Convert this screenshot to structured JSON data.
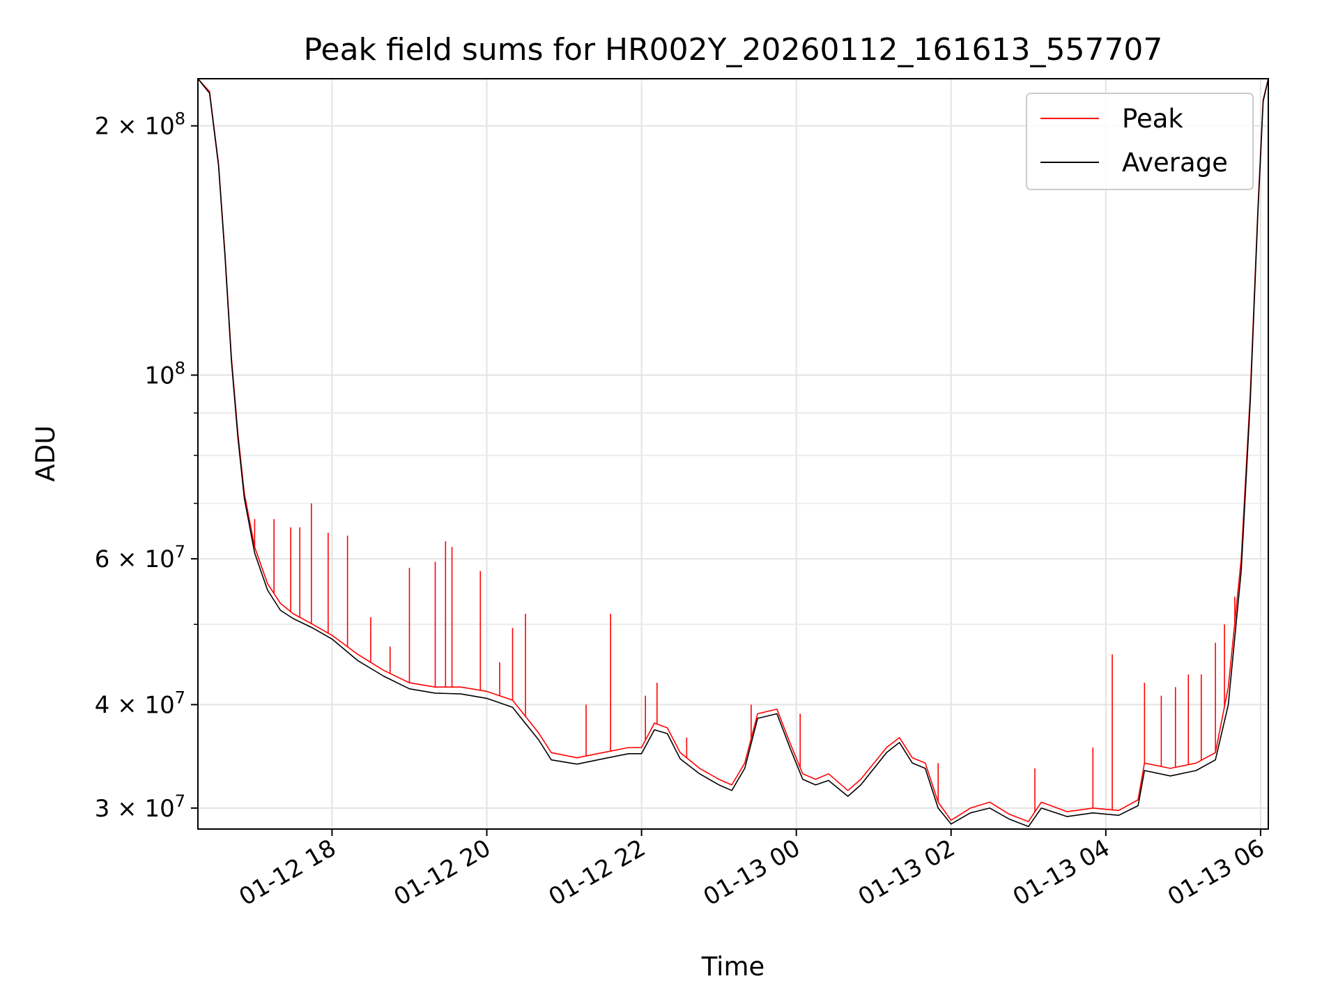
{
  "chart_data": {
    "type": "line",
    "title": "Peak field sums for HR002Y_20260112_161613_557707",
    "xlabel": "Time",
    "ylabel": "ADU",
    "yscale": "log",
    "ylim": [
      28300000,
      228000000
    ],
    "xlim": [
      "2026-01-12T16:16",
      "2026-01-13T06:06"
    ],
    "grid": true,
    "legend_position": "upper right",
    "x_ticks": [
      {
        "value": "2026-01-12T18:00",
        "label": "01-12 18"
      },
      {
        "value": "2026-01-12T20:00",
        "label": "01-12 20"
      },
      {
        "value": "2026-01-12T22:00",
        "label": "01-12 22"
      },
      {
        "value": "2026-01-13T00:00",
        "label": "01-13 00"
      },
      {
        "value": "2026-01-13T02:00",
        "label": "01-13 02"
      },
      {
        "value": "2026-01-13T04:00",
        "label": "01-13 04"
      },
      {
        "value": "2026-01-13T06:00",
        "label": "01-13 06"
      }
    ],
    "y_ticks": [
      {
        "value": 30000000,
        "mantissa": "3",
        "exponent": "7"
      },
      {
        "value": 40000000,
        "mantissa": "4",
        "exponent": "7"
      },
      {
        "value": 60000000,
        "mantissa": "6",
        "exponent": "7"
      },
      {
        "value": 100000000,
        "mantissa": "",
        "exponent": "8"
      },
      {
        "value": 200000000,
        "mantissa": "2",
        "exponent": "8"
      }
    ],
    "y_minor_ticks": [
      50000000,
      70000000,
      80000000,
      90000000
    ],
    "series": [
      {
        "name": "Peak",
        "color": "#ff0000",
        "points": [
          [
            "2026-01-12T16:16",
            228000000
          ],
          [
            "2026-01-12T16:25",
            220000000
          ],
          [
            "2026-01-12T16:32",
            180000000
          ],
          [
            "2026-01-12T16:37",
            140000000
          ],
          [
            "2026-01-12T16:42",
            105000000
          ],
          [
            "2026-01-12T16:47",
            85000000
          ],
          [
            "2026-01-12T16:52",
            72000000
          ],
          [
            "2026-01-12T17:00",
            62000000
          ],
          [
            "2026-01-12T17:10",
            56000000
          ],
          [
            "2026-01-12T17:20",
            53000000
          ],
          [
            "2026-01-12T17:30",
            51500000
          ],
          [
            "2026-01-12T17:45",
            50000000
          ],
          [
            "2026-01-12T18:00",
            48500000
          ],
          [
            "2026-01-12T18:20",
            46000000
          ],
          [
            "2026-01-12T18:40",
            44000000
          ],
          [
            "2026-01-12T19:00",
            42500000
          ],
          [
            "2026-01-12T19:20",
            42000000
          ],
          [
            "2026-01-12T19:40",
            42000000
          ],
          [
            "2026-01-12T20:00",
            41500000
          ],
          [
            "2026-01-12T20:20",
            40500000
          ],
          [
            "2026-01-12T20:40",
            37000000
          ],
          [
            "2026-01-12T20:50",
            35000000
          ],
          [
            "2026-01-12T21:10",
            34500000
          ],
          [
            "2026-01-12T21:30",
            35000000
          ],
          [
            "2026-01-12T21:50",
            35500000
          ],
          [
            "2026-01-12T22:00",
            35500000
          ],
          [
            "2026-01-12T22:10",
            38000000
          ],
          [
            "2026-01-12T22:20",
            37500000
          ],
          [
            "2026-01-12T22:30",
            35000000
          ],
          [
            "2026-01-12T22:45",
            33500000
          ],
          [
            "2026-01-12T23:00",
            32500000
          ],
          [
            "2026-01-12T23:10",
            32000000
          ],
          [
            "2026-01-12T23:20",
            34000000
          ],
          [
            "2026-01-12T23:30",
            39000000
          ],
          [
            "2026-01-12T23:45",
            39500000
          ],
          [
            "2026-01-12T23:55",
            36000000
          ],
          [
            "2026-01-13T00:05",
            33000000
          ],
          [
            "2026-01-13T00:15",
            32500000
          ],
          [
            "2026-01-13T00:25",
            33000000
          ],
          [
            "2026-01-13T00:40",
            31500000
          ],
          [
            "2026-01-13T00:50",
            32500000
          ],
          [
            "2026-01-13T01:10",
            35500000
          ],
          [
            "2026-01-13T01:20",
            36500000
          ],
          [
            "2026-01-13T01:30",
            34500000
          ],
          [
            "2026-01-13T01:40",
            34000000
          ],
          [
            "2026-01-13T01:50",
            30500000
          ],
          [
            "2026-01-13T02:00",
            29000000
          ],
          [
            "2026-01-13T02:15",
            30000000
          ],
          [
            "2026-01-13T02:30",
            30500000
          ],
          [
            "2026-01-13T02:45",
            29500000
          ],
          [
            "2026-01-13T03:00",
            28900000
          ],
          [
            "2026-01-13T03:10",
            30500000
          ],
          [
            "2026-01-13T03:30",
            29700000
          ],
          [
            "2026-01-13T03:50",
            30000000
          ],
          [
            "2026-01-13T04:10",
            29800000
          ],
          [
            "2026-01-13T04:25",
            30700000
          ],
          [
            "2026-01-13T04:30",
            34000000
          ],
          [
            "2026-01-13T04:50",
            33500000
          ],
          [
            "2026-01-13T05:10",
            34000000
          ],
          [
            "2026-01-13T05:25",
            35000000
          ],
          [
            "2026-01-13T05:35",
            42000000
          ],
          [
            "2026-01-13T05:45",
            60000000
          ],
          [
            "2026-01-13T05:52",
            95000000
          ],
          [
            "2026-01-13T05:58",
            160000000
          ],
          [
            "2026-01-13T06:02",
            215000000
          ],
          [
            "2026-01-13T06:06",
            228000000
          ]
        ],
        "spikes": [
          [
            "2026-01-12T17:00",
            67000000
          ],
          [
            "2026-01-12T17:15",
            67000000
          ],
          [
            "2026-01-12T17:28",
            65500000
          ],
          [
            "2026-01-12T17:35",
            65500000
          ],
          [
            "2026-01-12T17:44",
            70000000
          ],
          [
            "2026-01-12T17:57",
            64500000
          ],
          [
            "2026-01-12T18:12",
            64000000
          ],
          [
            "2026-01-12T18:30",
            51000000
          ],
          [
            "2026-01-12T18:45",
            47000000
          ],
          [
            "2026-01-12T19:00",
            58500000
          ],
          [
            "2026-01-12T19:20",
            59500000
          ],
          [
            "2026-01-12T19:28",
            63000000
          ],
          [
            "2026-01-12T19:33",
            62000000
          ],
          [
            "2026-01-12T19:55",
            58000000
          ],
          [
            "2026-01-12T20:10",
            45000000
          ],
          [
            "2026-01-12T20:20",
            49500000
          ],
          [
            "2026-01-12T20:30",
            51500000
          ],
          [
            "2026-01-12T21:17",
            40000000
          ],
          [
            "2026-01-12T21:36",
            51500000
          ],
          [
            "2026-01-12T22:03",
            41000000
          ],
          [
            "2026-01-12T22:12",
            42500000
          ],
          [
            "2026-01-12T22:35",
            36500000
          ],
          [
            "2026-01-12T23:25",
            40000000
          ],
          [
            "2026-01-13T00:03",
            39000000
          ],
          [
            "2026-01-13T01:50",
            34000000
          ],
          [
            "2026-01-13T03:05",
            33500000
          ],
          [
            "2026-01-13T03:50",
            35500000
          ],
          [
            "2026-01-13T04:05",
            46000000
          ],
          [
            "2026-01-13T04:30",
            42500000
          ],
          [
            "2026-01-13T04:43",
            41000000
          ],
          [
            "2026-01-13T04:54",
            42000000
          ],
          [
            "2026-01-13T05:04",
            43500000
          ],
          [
            "2026-01-13T05:14",
            43500000
          ],
          [
            "2026-01-13T05:25",
            47500000
          ],
          [
            "2026-01-13T05:32",
            50000000
          ],
          [
            "2026-01-13T05:40",
            54000000
          ]
        ]
      },
      {
        "name": "Average",
        "color": "#000000",
        "points": [
          [
            "2026-01-12T16:16",
            228000000
          ],
          [
            "2026-01-12T16:25",
            219000000
          ],
          [
            "2026-01-12T16:32",
            179000000
          ],
          [
            "2026-01-12T16:37",
            139000000
          ],
          [
            "2026-01-12T16:42",
            104000000
          ],
          [
            "2026-01-12T16:47",
            84000000
          ],
          [
            "2026-01-12T16:52",
            71000000
          ],
          [
            "2026-01-12T17:00",
            61000000
          ],
          [
            "2026-01-12T17:10",
            55000000
          ],
          [
            "2026-01-12T17:20",
            52000000
          ],
          [
            "2026-01-12T17:30",
            50800000
          ],
          [
            "2026-01-12T17:45",
            49500000
          ],
          [
            "2026-01-12T18:00",
            48000000
          ],
          [
            "2026-01-12T18:20",
            45200000
          ],
          [
            "2026-01-12T18:40",
            43300000
          ],
          [
            "2026-01-12T19:00",
            41800000
          ],
          [
            "2026-01-12T19:20",
            41300000
          ],
          [
            "2026-01-12T19:40",
            41200000
          ],
          [
            "2026-01-12T20:00",
            40700000
          ],
          [
            "2026-01-12T20:20",
            39700000
          ],
          [
            "2026-01-12T20:40",
            36300000
          ],
          [
            "2026-01-12T20:50",
            34300000
          ],
          [
            "2026-01-12T21:10",
            33900000
          ],
          [
            "2026-01-12T21:30",
            34400000
          ],
          [
            "2026-01-12T21:50",
            34900000
          ],
          [
            "2026-01-12T22:00",
            34900000
          ],
          [
            "2026-01-12T22:10",
            37300000
          ],
          [
            "2026-01-12T22:20",
            36900000
          ],
          [
            "2026-01-12T22:30",
            34400000
          ],
          [
            "2026-01-12T22:45",
            33000000
          ],
          [
            "2026-01-12T23:00",
            32000000
          ],
          [
            "2026-01-12T23:10",
            31500000
          ],
          [
            "2026-01-12T23:20",
            33500000
          ],
          [
            "2026-01-12T23:30",
            38500000
          ],
          [
            "2026-01-12T23:45",
            39000000
          ],
          [
            "2026-01-12T23:55",
            35500000
          ],
          [
            "2026-01-13T00:05",
            32500000
          ],
          [
            "2026-01-13T00:15",
            32000000
          ],
          [
            "2026-01-13T00:25",
            32400000
          ],
          [
            "2026-01-13T00:40",
            31000000
          ],
          [
            "2026-01-13T00:50",
            32000000
          ],
          [
            "2026-01-13T01:10",
            35000000
          ],
          [
            "2026-01-13T01:20",
            36000000
          ],
          [
            "2026-01-13T01:30",
            34000000
          ],
          [
            "2026-01-13T01:40",
            33500000
          ],
          [
            "2026-01-13T01:50",
            30000000
          ],
          [
            "2026-01-13T02:00",
            28700000
          ],
          [
            "2026-01-13T02:15",
            29600000
          ],
          [
            "2026-01-13T02:30",
            30000000
          ],
          [
            "2026-01-13T02:45",
            29100000
          ],
          [
            "2026-01-13T03:00",
            28500000
          ],
          [
            "2026-01-13T03:10",
            30000000
          ],
          [
            "2026-01-13T03:30",
            29300000
          ],
          [
            "2026-01-13T03:50",
            29600000
          ],
          [
            "2026-01-13T04:10",
            29400000
          ],
          [
            "2026-01-13T04:25",
            30200000
          ],
          [
            "2026-01-13T04:30",
            33300000
          ],
          [
            "2026-01-13T04:50",
            32800000
          ],
          [
            "2026-01-13T05:10",
            33300000
          ],
          [
            "2026-01-13T05:25",
            34300000
          ],
          [
            "2026-01-13T05:35",
            40000000
          ],
          [
            "2026-01-13T05:45",
            58000000
          ],
          [
            "2026-01-13T05:52",
            93000000
          ],
          [
            "2026-01-13T05:58",
            158000000
          ],
          [
            "2026-01-13T06:02",
            214000000
          ],
          [
            "2026-01-13T06:06",
            228000000
          ]
        ]
      }
    ]
  }
}
